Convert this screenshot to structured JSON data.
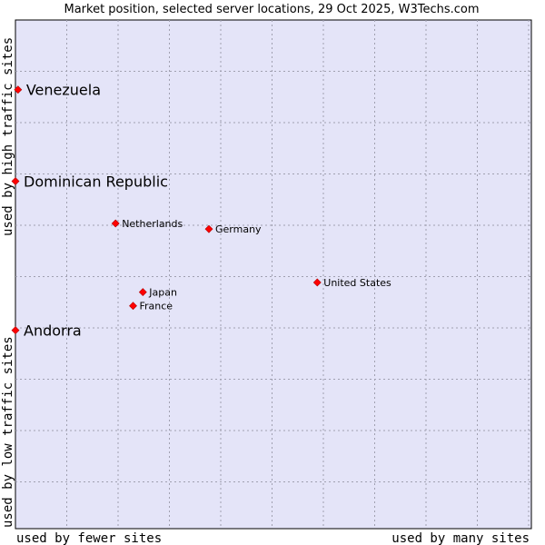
{
  "chart_data": {
    "type": "scatter",
    "title": "Market position, selected server locations, 29 Oct 2025, W3Techs.com",
    "x_axis": {
      "left_label": "used by fewer sites",
      "right_label": "used by many sites",
      "range": [
        0,
        100
      ],
      "grid": true
    },
    "y_axis": {
      "bottom_label": "used by low traffic sites",
      "top_label": "used by high traffic sites",
      "range": [
        0,
        100
      ],
      "grid": true
    },
    "background_color": "#e4e4f8",
    "grid_color": "#a0a0b0",
    "marker_color": "#ff0000",
    "points": [
      {
        "name": "Venezuela",
        "x": 0.5,
        "y": 86.3,
        "emphasis": true
      },
      {
        "name": "Dominican Republic",
        "x": 0.0,
        "y": 68.3,
        "emphasis": true
      },
      {
        "name": "Netherlands",
        "x": 19.4,
        "y": 60.0,
        "emphasis": false
      },
      {
        "name": "Germany",
        "x": 37.5,
        "y": 58.9,
        "emphasis": false
      },
      {
        "name": "United States",
        "x": 58.5,
        "y": 48.4,
        "emphasis": false
      },
      {
        "name": "Japan",
        "x": 24.7,
        "y": 46.5,
        "emphasis": false
      },
      {
        "name": "France",
        "x": 22.8,
        "y": 43.8,
        "emphasis": false
      },
      {
        "name": "Andorra",
        "x": 0.0,
        "y": 39.0,
        "emphasis": true
      }
    ]
  }
}
